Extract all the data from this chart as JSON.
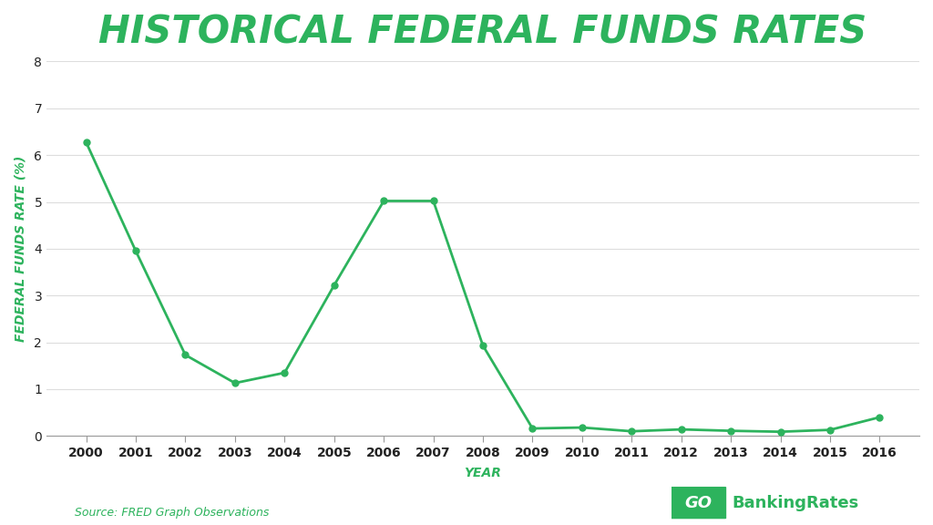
{
  "title": "HISTORICAL FEDERAL FUNDS RATES",
  "xlabel": "YEAR",
  "ylabel": "FEDERAL FUNDS RATE (%)",
  "source": "Source: FRED Graph Observations",
  "years": [
    2000,
    2001,
    2002,
    2003,
    2004,
    2005,
    2006,
    2007,
    2008,
    2009,
    2010,
    2011,
    2012,
    2013,
    2014,
    2015,
    2016
  ],
  "rates": [
    6.27,
    3.95,
    1.73,
    1.13,
    1.35,
    3.22,
    5.02,
    5.02,
    1.93,
    0.16,
    0.18,
    0.1,
    0.14,
    0.11,
    0.09,
    0.13,
    0.4
  ],
  "line_color": "#2db35d",
  "marker_color": "#2db35d",
  "title_color": "#2db35d",
  "ylabel_color": "#2db35d",
  "xlabel_color": "#2db35d",
  "source_color": "#2db35d",
  "background_color": "#ffffff",
  "ylim": [
    0,
    8
  ],
  "yticks": [
    0,
    1,
    2,
    3,
    4,
    5,
    6,
    7,
    8
  ],
  "title_fontsize": 30,
  "axis_label_fontsize": 10,
  "tick_fontsize": 10,
  "source_fontsize": 9,
  "logo_text_go": "GO",
  "logo_text_rest": "BankingRates",
  "logo_bg": "#2db35d",
  "logo_text_color": "#ffffff"
}
